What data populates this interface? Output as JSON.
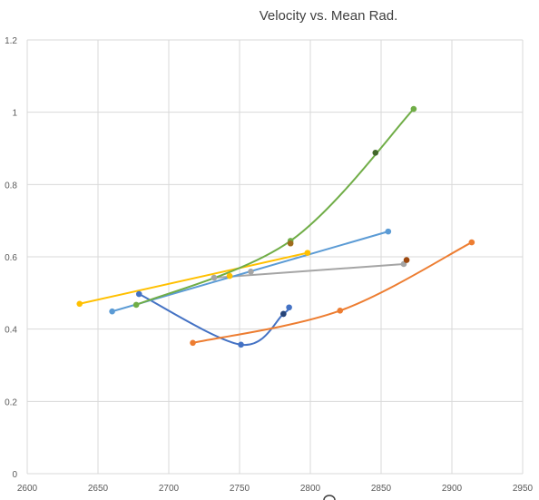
{
  "chart_data": {
    "type": "scatter",
    "title": "Velocity vs. Mean Rad.",
    "xlabel": "",
    "ylabel": "",
    "xlim": [
      2600,
      2950
    ],
    "ylim": [
      0,
      1.2
    ],
    "x_ticks": [
      2600,
      2650,
      2700,
      2750,
      2800,
      2850,
      2900,
      2950
    ],
    "y_ticks": [
      0,
      0.2,
      0.4,
      0.6,
      0.8,
      1,
      1.2
    ],
    "x_tick_labels": [
      "2600",
      "2650",
      "2700",
      "2750",
      "2800",
      "2850",
      "2900",
      "2950"
    ],
    "y_tick_labels": [
      "0",
      "0.2",
      "0.4",
      "0.6",
      "0.8",
      "1",
      "1.2"
    ],
    "grid": true,
    "legend": "none",
    "series": [
      {
        "color": "#4472c4",
        "smooth": true,
        "points": [
          [
            2679,
            0.497
          ],
          [
            2751,
            0.357
          ],
          [
            2781,
            0.442
          ],
          [
            2785,
            0.46
          ]
        ]
      },
      {
        "color": "#ed7d31",
        "smooth": true,
        "points": [
          [
            2717,
            0.362
          ],
          [
            2821,
            0.451
          ],
          [
            2914,
            0.64
          ]
        ]
      },
      {
        "color": "#a5a5a5",
        "smooth": false,
        "points": [
          [
            2732,
            0.542
          ],
          [
            2866,
            0.58
          ]
        ]
      },
      {
        "color": "#ffc000",
        "smooth": false,
        "points": [
          [
            2637,
            0.47
          ],
          [
            2798,
            0.611
          ]
        ]
      },
      {
        "color": "#5b9bd5",
        "smooth": false,
        "points": [
          [
            2660,
            0.449
          ],
          [
            2855,
            0.67
          ]
        ]
      },
      {
        "color": "#70ad47",
        "smooth": true,
        "points": [
          [
            2677,
            0.467
          ],
          [
            2786,
            0.644
          ],
          [
            2873,
            1.009
          ]
        ]
      }
    ],
    "extra_markers": [
      {
        "x": 2743,
        "y": 0.547,
        "color": "#ffc000"
      },
      {
        "x": 2758,
        "y": 0.559,
        "color": "#a5a5a5"
      },
      {
        "x": 2786,
        "y": 0.637,
        "color": "#9e6b1c"
      },
      {
        "x": 2846,
        "y": 0.888,
        "color": "#43682b"
      },
      {
        "x": 2868,
        "y": 0.591,
        "color": "#9e480e"
      },
      {
        "x": 2781,
        "y": 0.442,
        "color": "#264478"
      }
    ]
  }
}
